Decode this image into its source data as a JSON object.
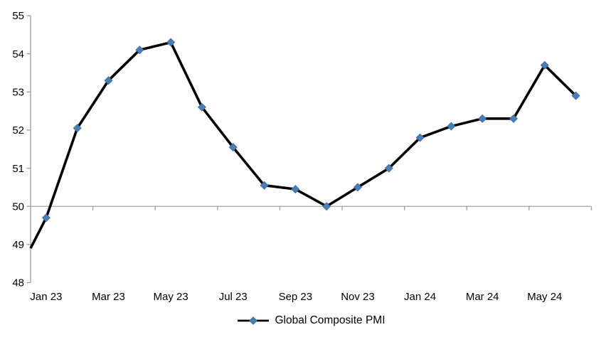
{
  "chart_data": {
    "type": "line",
    "title": "",
    "categories": [
      "Jan 23",
      "Feb 23",
      "Mar 23",
      "Apr 23",
      "May 23",
      "Jun 23",
      "Jul 23",
      "Aug 23",
      "Sep 23",
      "Oct 23",
      "Nov 23",
      "Dec 23",
      "Jan 24",
      "Feb 24",
      "Mar 24",
      "Apr 24",
      "May 24",
      "Jun 24"
    ],
    "series": [
      {
        "name": "Global Composite PMI",
        "values": [
          49.7,
          52.05,
          53.3,
          54.1,
          54.3,
          52.6,
          51.55,
          50.55,
          50.45,
          50.0,
          50.5,
          51.0,
          51.8,
          52.1,
          52.3,
          52.3,
          53.7,
          52.9
        ],
        "line_color": "#000000",
        "marker": "diamond",
        "marker_color": "#4A7EBB",
        "marker_edge_color": "#3D6DA3"
      }
    ],
    "lead_in": {
      "note": "series line enters plot from the left axis edge without a marker",
      "value_at_axis": 48.9
    },
    "x_tick_labels": [
      "Jan 23",
      "Mar 23",
      "May 23",
      "Jul 23",
      "Sep 23",
      "Nov 23",
      "Jan 24",
      "Mar 24",
      "May 24"
    ],
    "y_tick_labels": [
      "55",
      "54",
      "53",
      "52",
      "51",
      "50",
      "49",
      "48"
    ],
    "ylim": [
      48,
      55
    ],
    "y_tick_step": 1,
    "x_axis_cross_value": 50,
    "grid": "off",
    "legend": {
      "position": "bottom-center",
      "label": "Global Composite PMI"
    },
    "colors": {
      "axis": "#9C9C9C",
      "cross_line": "#A6A6A6",
      "tick": "#9C9C9C",
      "text": "#000000",
      "background": "#FFFFFF"
    }
  }
}
